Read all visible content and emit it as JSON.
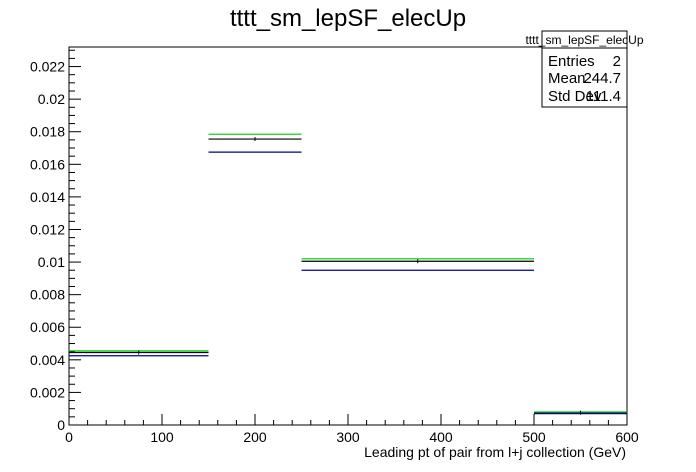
{
  "chart_data": {
    "type": "histogram",
    "title": "tttt_sm_lepSF_elecUp",
    "xlabel": "Leading pt of pair from l+j collection (GeV)",
    "ylabel": "",
    "xlim": [
      0,
      600
    ],
    "ylim": [
      0,
      0.0232
    ],
    "x_ticks": [
      0,
      100,
      200,
      300,
      400,
      500,
      600
    ],
    "x_tick_labels": [
      "0",
      "100",
      "200",
      "300",
      "400",
      "500",
      "600"
    ],
    "y_ticks": [
      0,
      0.002,
      0.004,
      0.006,
      0.008,
      0.01,
      0.012,
      0.014,
      0.016,
      0.018,
      0.02,
      0.022
    ],
    "y_tick_labels": [
      "0",
      "0.002",
      "0.004",
      "0.006",
      "0.008",
      "0.01",
      "0.012",
      "0.014",
      "0.016",
      "0.018",
      "0.02",
      "0.022"
    ],
    "bin_edges": [
      0,
      150,
      250,
      500,
      600
    ],
    "series": [
      {
        "color": "#000000",
        "values": [
          0.00445,
          0.01755,
          0.01005,
          0.00075
        ]
      },
      {
        "color": "#00cc00",
        "values": [
          0.00455,
          0.01785,
          0.0102,
          0.0008
        ]
      },
      {
        "color": "#000099",
        "values": [
          0.00425,
          0.01675,
          0.0095,
          0.0007
        ]
      }
    ],
    "grid": false,
    "stats_box": {
      "name": "tttt_sm_lepSF_elecUp",
      "rows": [
        {
          "label": "Entries",
          "value": "2"
        },
        {
          "label": "Mean",
          "value": "244.7"
        },
        {
          "label": "Std Dev",
          "value": "111.4"
        }
      ]
    }
  }
}
